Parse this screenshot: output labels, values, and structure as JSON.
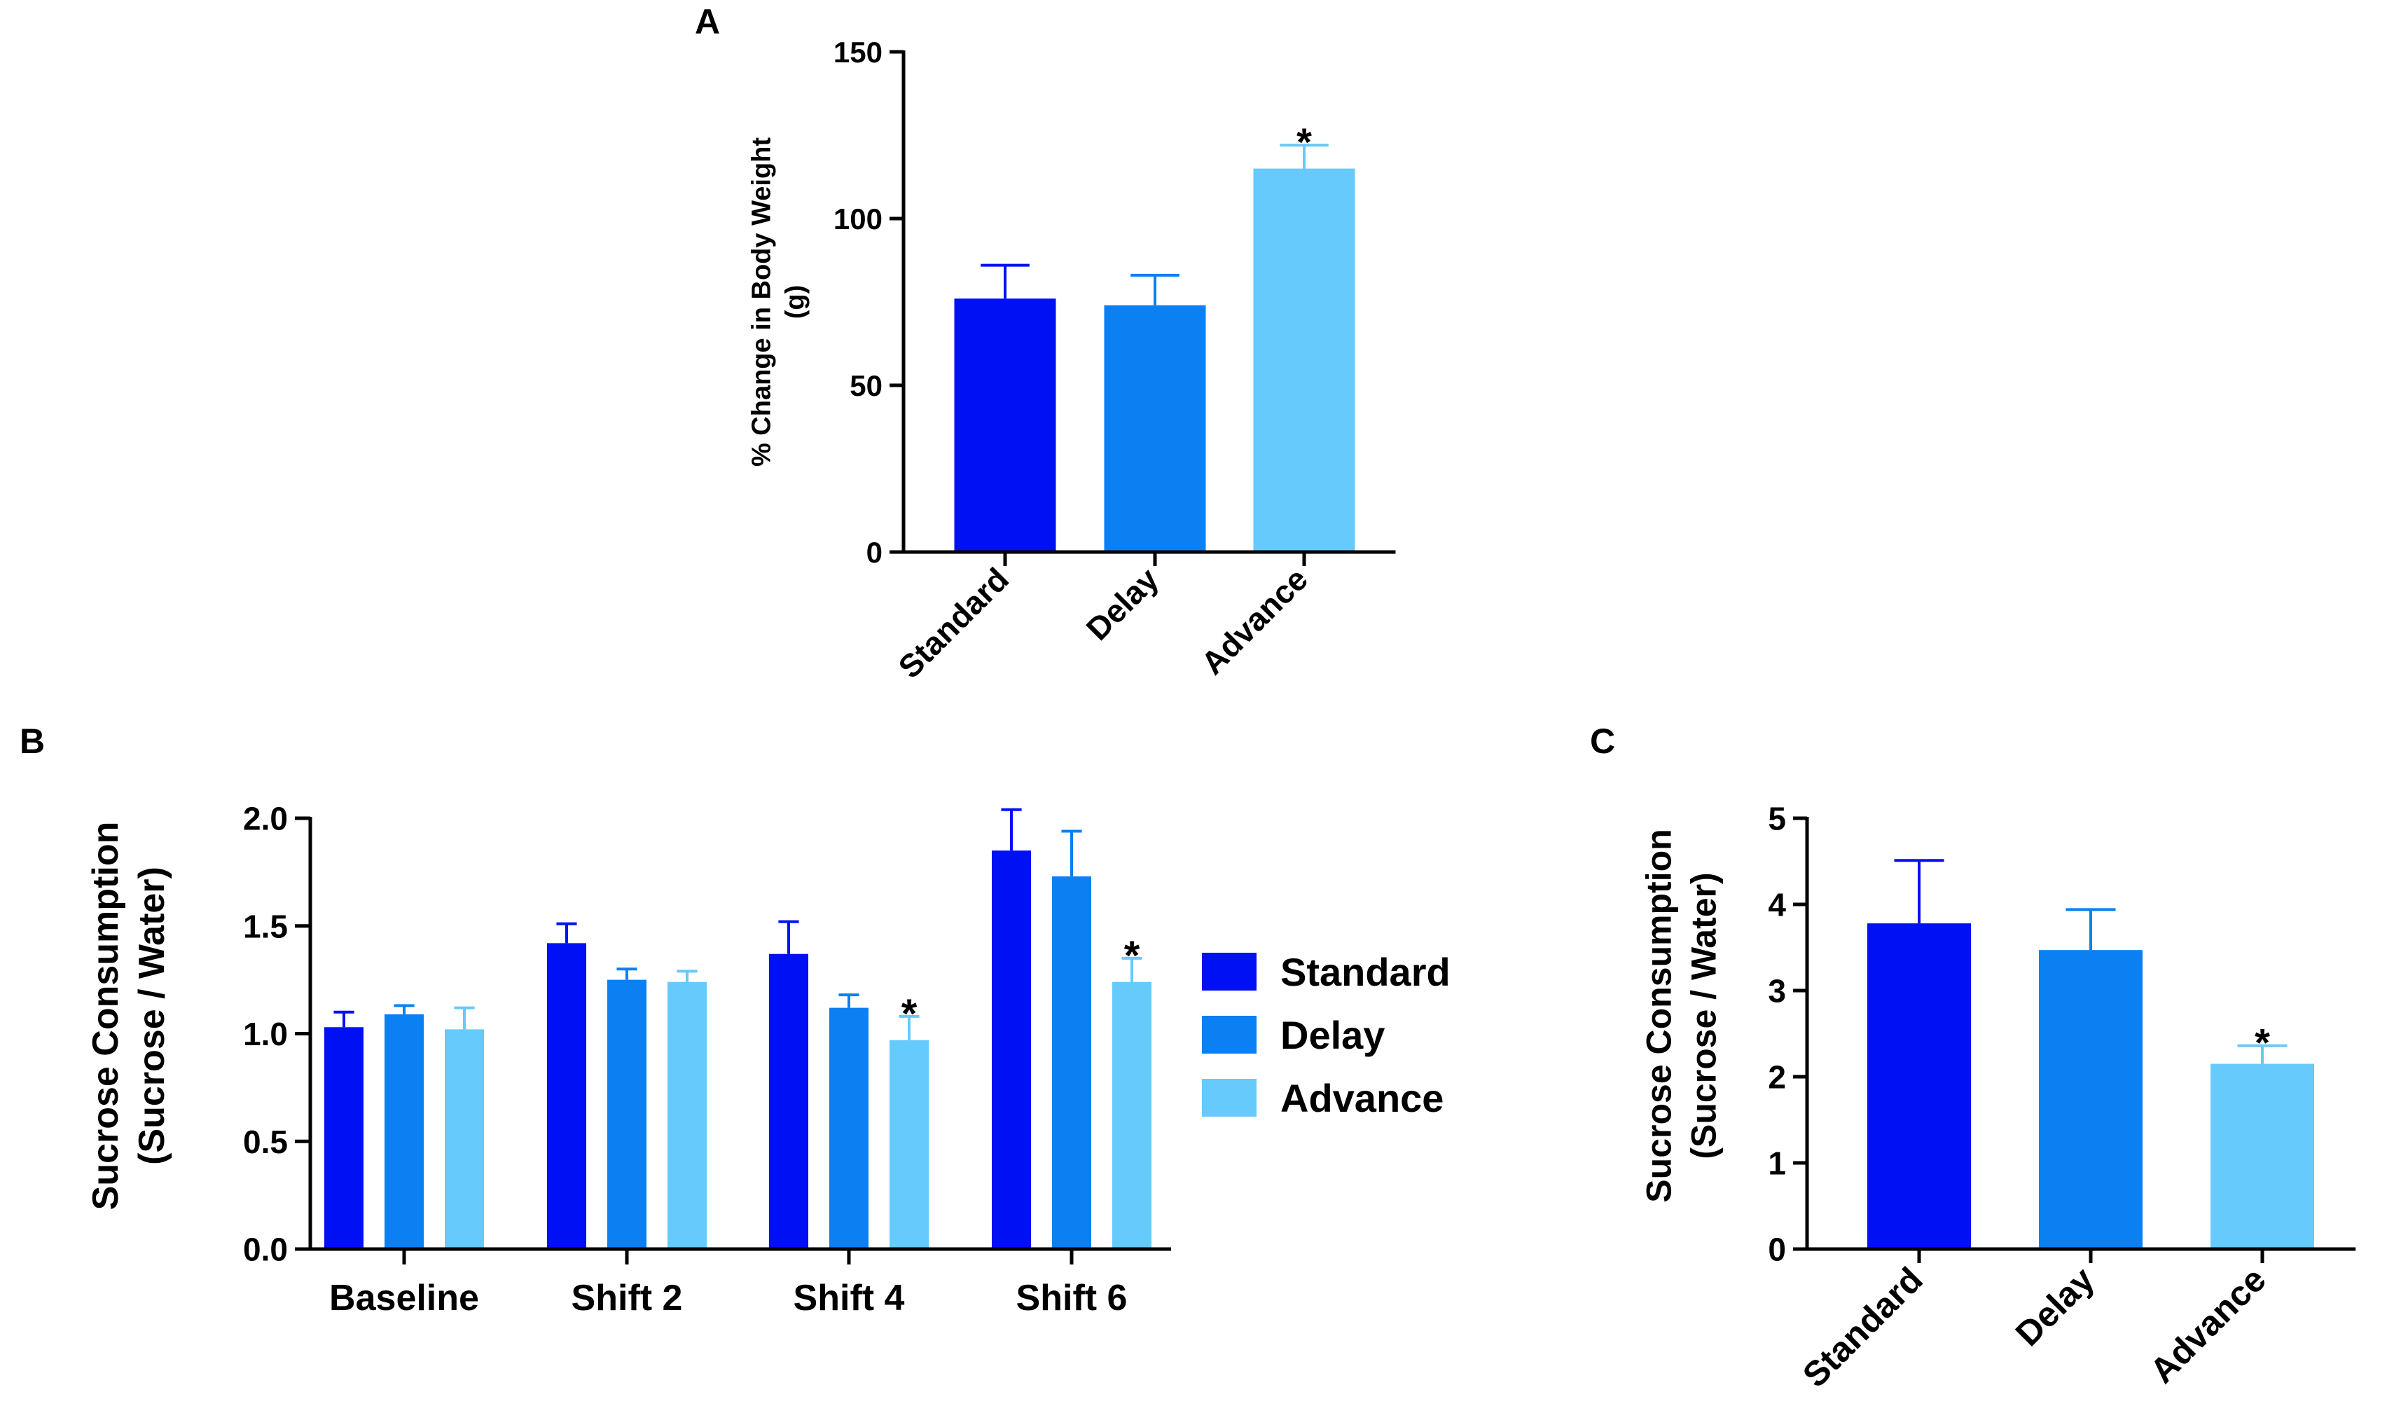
{
  "colors": {
    "standard": "#0010F5",
    "delay": "#0A80F2",
    "advance": "#66CAFC",
    "axis": "#000000"
  },
  "legend": {
    "entries": [
      "Standard",
      "Delay",
      "Advance"
    ]
  },
  "chart_data": [
    {
      "panel": "A",
      "type": "bar",
      "title": "",
      "xlabel": "",
      "ylabel": "% Change in Body Weight (g)",
      "ylabel_lines": [
        "% Change in Body Weight",
        "(g)"
      ],
      "ylim": [
        0,
        150
      ],
      "yticks": [
        0,
        50,
        100,
        150
      ],
      "ytick_labels": [
        "0",
        "50",
        "100",
        "150"
      ],
      "categories": [
        "Standard",
        "Delay",
        "Advance"
      ],
      "values": [
        76,
        74,
        115
      ],
      "errors": [
        10,
        9,
        7
      ],
      "significance": [
        "",
        "",
        "*"
      ],
      "grid": false,
      "legend": "none"
    },
    {
      "panel": "B",
      "type": "bar",
      "title": "",
      "xlabel": "",
      "ylabel": "Sucrose Consumption (Sucrose / Water)",
      "ylabel_lines": [
        "Sucrose  Consumption",
        "(Sucrose / Water)"
      ],
      "ylim": [
        0,
        2.0
      ],
      "yticks": [
        0,
        0.5,
        1.0,
        1.5,
        2.0
      ],
      "ytick_labels": [
        "0.0",
        "0.5",
        "1.0",
        "1.5",
        "2.0"
      ],
      "categories": [
        "Baseline",
        "Shift 2",
        "Shift 4",
        "Shift 6"
      ],
      "series": [
        {
          "name": "Standard",
          "values": [
            1.03,
            1.42,
            1.37,
            1.85
          ],
          "errors": [
            0.07,
            0.09,
            0.15,
            0.19
          ],
          "significance": [
            "",
            "",
            "",
            ""
          ]
        },
        {
          "name": "Delay",
          "values": [
            1.09,
            1.25,
            1.12,
            1.73
          ],
          "errors": [
            0.04,
            0.05,
            0.06,
            0.21
          ],
          "significance": [
            "",
            "",
            "",
            ""
          ]
        },
        {
          "name": "Advance",
          "values": [
            1.02,
            1.24,
            0.97,
            1.24
          ],
          "errors": [
            0.1,
            0.05,
            0.11,
            0.11
          ],
          "significance": [
            "",
            "",
            "*",
            "*"
          ]
        }
      ],
      "grid": false,
      "legend": "right"
    },
    {
      "panel": "C",
      "type": "bar",
      "title": "",
      "xlabel": "",
      "ylabel": "Sucrose Consumption (Sucrose / Water)",
      "ylabel_lines": [
        "Sucrose  Consumption",
        "(Sucrose / Water)"
      ],
      "ylim": [
        0,
        5
      ],
      "yticks": [
        0,
        1,
        2,
        3,
        4,
        5
      ],
      "ytick_labels": [
        "0",
        "1",
        "2",
        "3",
        "4",
        "5"
      ],
      "categories": [
        "Standard",
        "Delay",
        "Advance"
      ],
      "values": [
        3.78,
        3.47,
        2.15
      ],
      "errors": [
        0.73,
        0.47,
        0.21
      ],
      "significance": [
        "",
        "",
        "*"
      ],
      "grid": false,
      "legend": "none"
    }
  ]
}
